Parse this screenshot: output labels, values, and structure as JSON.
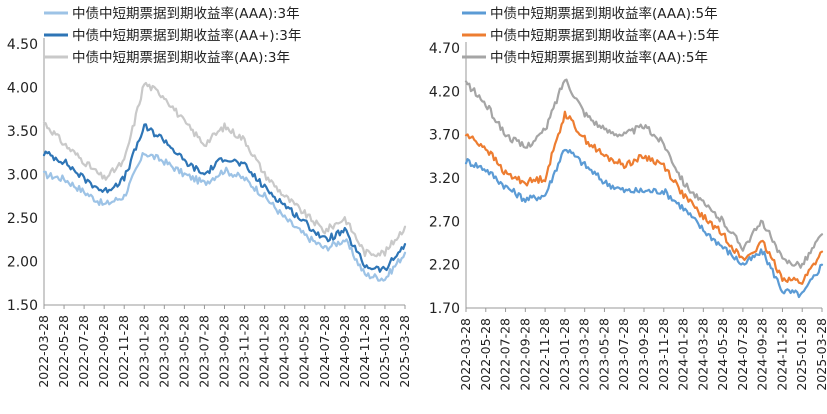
{
  "chart_data": [
    {
      "type": "line",
      "title": "",
      "xlabel": "",
      "ylabel": "",
      "ylim": [
        1.5,
        4.5
      ],
      "yticks": [
        "4.50",
        "4.00",
        "3.50",
        "3.00",
        "2.50",
        "2.00",
        "1.50"
      ],
      "categories": [
        "2022-03-28",
        "2022-05-28",
        "2022-07-28",
        "2022-09-28",
        "2022-11-28",
        "2023-01-28",
        "2023-03-28",
        "2023-05-28",
        "2023-07-28",
        "2023-09-28",
        "2023-11-28",
        "2024-01-28",
        "2024-03-28",
        "2024-05-28",
        "2024-07-28",
        "2024-09-28",
        "2024-11-28",
        "2025-01-28",
        "2025-03-28"
      ],
      "legend_position": "top",
      "grid": false,
      "series": [
        {
          "name": "中债中短期票据到期收益率(AAA):3年",
          "color": "#9dc3e6",
          "values": [
            3.0,
            2.95,
            2.8,
            2.65,
            2.75,
            3.25,
            3.15,
            3.0,
            2.9,
            3.05,
            2.95,
            2.75,
            2.5,
            2.3,
            2.15,
            2.25,
            1.85,
            1.8,
            2.1
          ]
        },
        {
          "name": "中债中短期票据到期收益率(AA+):3年",
          "color": "#2e75b6",
          "values": [
            3.25,
            3.15,
            2.95,
            2.8,
            2.95,
            3.55,
            3.4,
            3.15,
            3.0,
            3.2,
            3.1,
            2.85,
            2.65,
            2.45,
            2.25,
            2.35,
            1.95,
            1.9,
            2.2
          ]
        },
        {
          "name": "中债中短期票据到期收益率(AA):3年",
          "color": "#c9c9c9",
          "values": [
            3.6,
            3.35,
            3.15,
            2.95,
            3.15,
            4.05,
            3.9,
            3.6,
            3.35,
            3.55,
            3.4,
            3.0,
            2.75,
            2.55,
            2.35,
            2.5,
            2.1,
            2.1,
            2.4
          ]
        }
      ]
    },
    {
      "type": "line",
      "title": "",
      "xlabel": "",
      "ylabel": "",
      "ylim": [
        1.7,
        4.7
      ],
      "yticks": [
        "4.70",
        "4.20",
        "3.70",
        "3.20",
        "2.70",
        "2.20",
        "1.70"
      ],
      "categories": [
        "2022-03-28",
        "2022-05-28",
        "2022-07-28",
        "2022-09-28",
        "2022-11-28",
        "2023-01-28",
        "2023-03-28",
        "2023-05-28",
        "2023-07-28",
        "2023-09-28",
        "2023-11-28",
        "2024-01-28",
        "2024-03-28",
        "2024-05-28",
        "2024-07-28",
        "2024-09-28",
        "2024-11-28",
        "2025-01-28",
        "2025-03-28"
      ],
      "legend_position": "top",
      "grid": false,
      "series": [
        {
          "name": "中债中短期票据到期收益率(AAA):5年",
          "color": "#5b9bd5",
          "values": [
            3.4,
            3.3,
            3.1,
            2.95,
            3.0,
            3.55,
            3.35,
            3.15,
            3.05,
            3.05,
            3.05,
            2.85,
            2.6,
            2.4,
            2.2,
            2.35,
            1.9,
            1.85,
            2.2
          ]
        },
        {
          "name": "中债中短期票据到期收益率(AA+):5年",
          "color": "#ed7d31",
          "values": [
            3.7,
            3.55,
            3.25,
            3.15,
            3.2,
            3.95,
            3.65,
            3.45,
            3.35,
            3.45,
            3.35,
            3.0,
            2.75,
            2.55,
            2.25,
            2.45,
            2.05,
            2.0,
            2.35
          ]
        },
        {
          "name": "中债中短期票据到期收益率(AA):5年",
          "color": "#a5a5a5",
          "values": [
            4.3,
            4.05,
            3.7,
            3.55,
            3.75,
            4.35,
            3.95,
            3.75,
            3.7,
            3.8,
            3.6,
            3.15,
            2.9,
            2.7,
            2.4,
            2.7,
            2.25,
            2.2,
            2.55
          ]
        }
      ]
    }
  ]
}
